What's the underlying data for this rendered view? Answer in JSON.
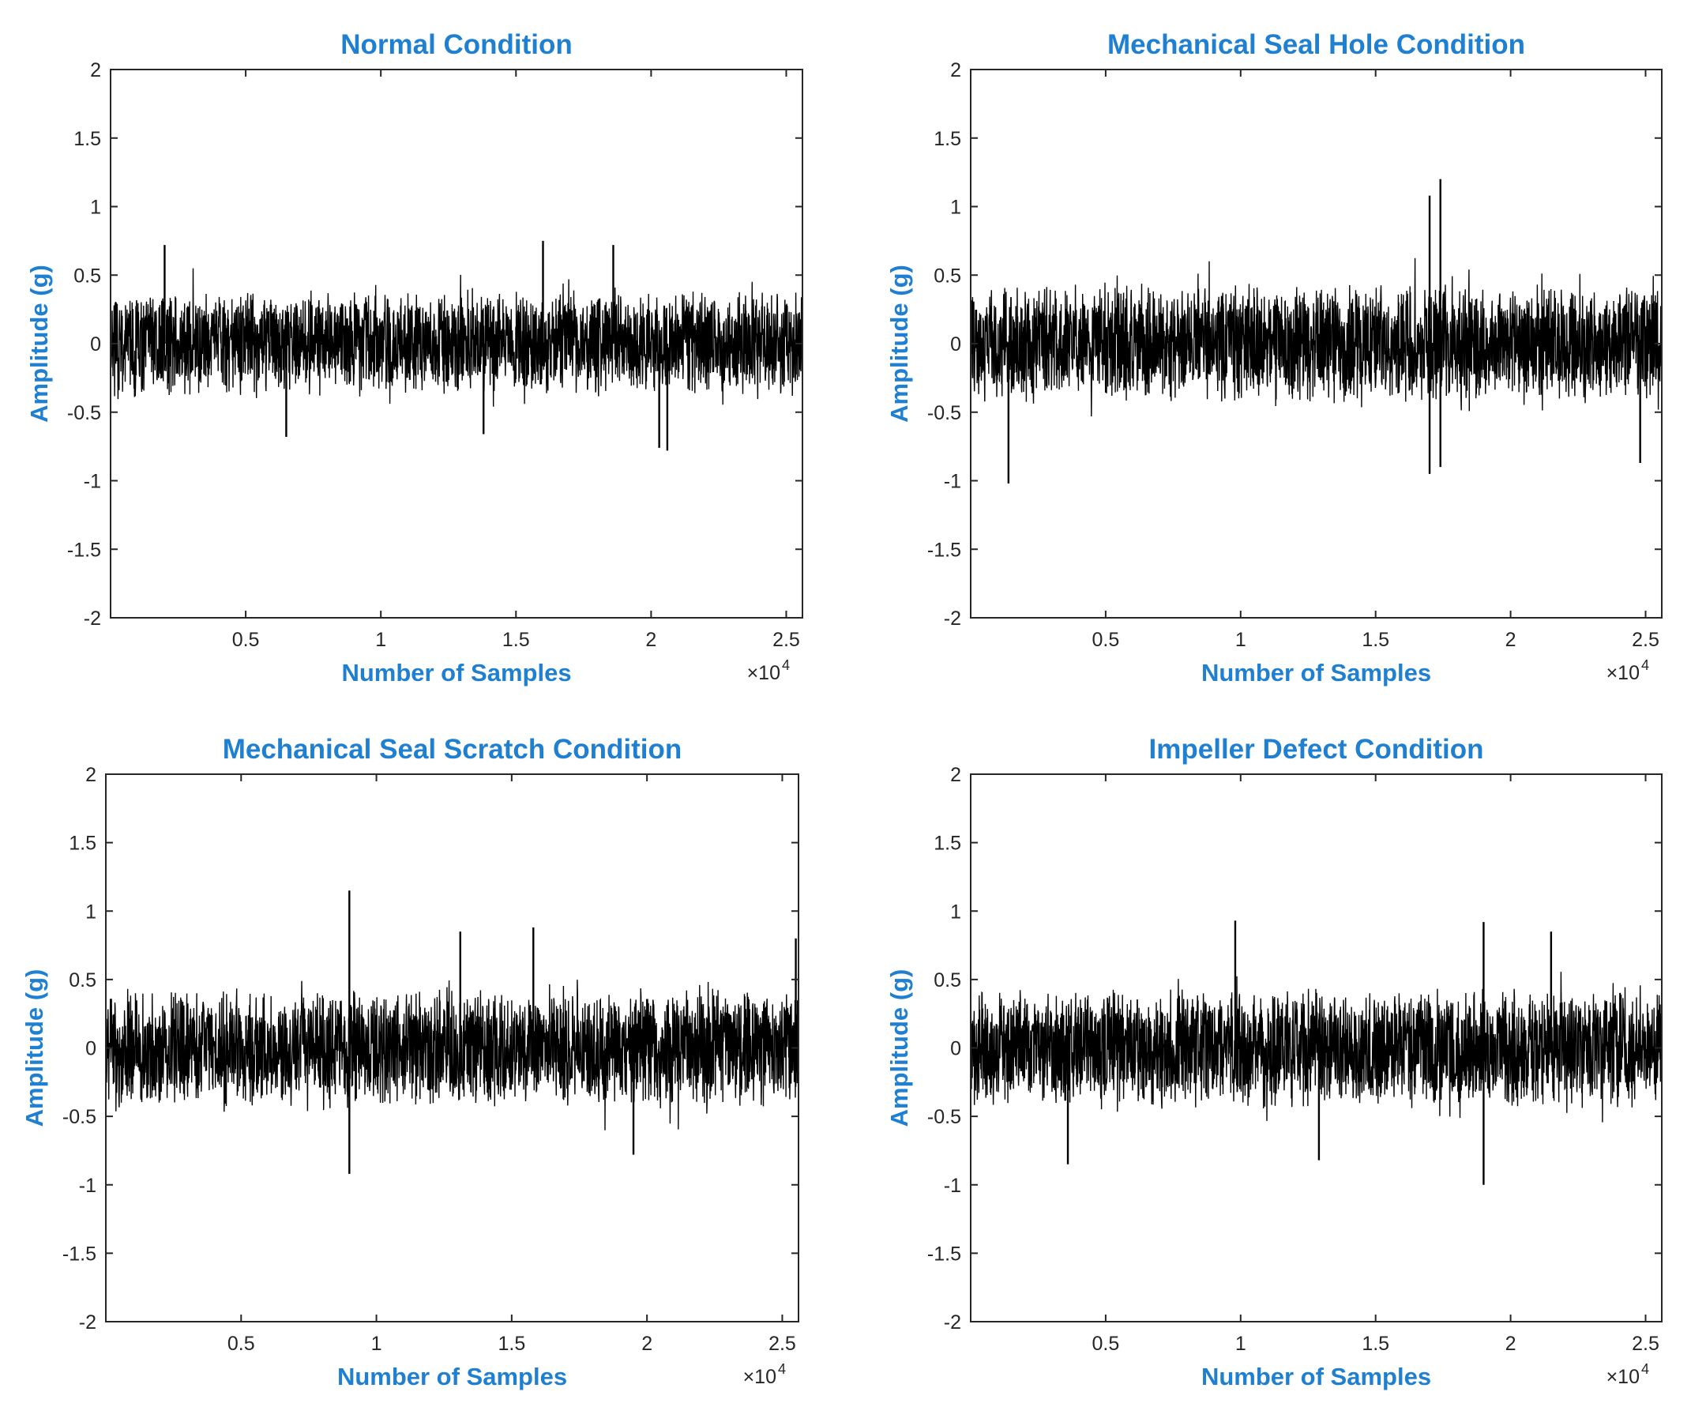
{
  "figure": {
    "label_color": "#1f7fd1",
    "signal_color": "#000000"
  },
  "chart_data": [
    {
      "type": "line",
      "title": "Normal Condition",
      "xlabel": "Number of Samples",
      "ylabel": "Amplitude (g)",
      "x_exponent_label": "×10",
      "x_exponent": "4",
      "xlim": [
        0,
        25600
      ],
      "ylim": [
        -2,
        2
      ],
      "xticks": [
        5000,
        10000,
        15000,
        20000,
        25000
      ],
      "xtick_labels": [
        "0.5",
        "1",
        "1.5",
        "2",
        "2.5"
      ],
      "yticks": [
        -2,
        -1.5,
        -1,
        -0.5,
        0,
        0.5,
        1,
        1.5,
        2
      ],
      "ytick_labels": [
        "-2",
        "-1.5",
        "-1",
        "-0.5",
        "0",
        "0.5",
        "1",
        "1.5",
        "2"
      ],
      "series": [
        {
          "kind": "vibration",
          "samples": 25600,
          "typical_range": [
            -0.4,
            0.4
          ],
          "min": -0.78,
          "max": 0.75
        }
      ],
      "spikes": [
        {
          "x": 2000,
          "y": 0.72
        },
        {
          "x": 6500,
          "y": -0.68
        },
        {
          "x": 13800,
          "y": -0.66
        },
        {
          "x": 16000,
          "y": 0.75
        },
        {
          "x": 18600,
          "y": 0.72
        },
        {
          "x": 20300,
          "y": -0.76
        },
        {
          "x": 20600,
          "y": -0.78
        }
      ],
      "grid": false
    },
    {
      "type": "line",
      "title": "Mechanical Seal Hole Condition",
      "xlabel": "Number of Samples",
      "ylabel": "Amplitude (g)",
      "x_exponent_label": "×10",
      "x_exponent": "4",
      "xlim": [
        0,
        25600
      ],
      "ylim": [
        -2,
        2
      ],
      "xticks": [
        5000,
        10000,
        15000,
        20000,
        25000
      ],
      "xtick_labels": [
        "0.5",
        "1",
        "1.5",
        "2",
        "2.5"
      ],
      "yticks": [
        -2,
        -1.5,
        -1,
        -0.5,
        0,
        0.5,
        1,
        1.5,
        2
      ],
      "ytick_labels": [
        "-2",
        "-1.5",
        "-1",
        "-0.5",
        "0",
        "0.5",
        "1",
        "1.5",
        "2"
      ],
      "series": [
        {
          "kind": "vibration",
          "samples": 25600,
          "typical_range": [
            -0.45,
            0.45
          ],
          "min": -1.02,
          "max": 1.2
        }
      ],
      "spikes": [
        {
          "x": 1400,
          "y": -1.02
        },
        {
          "x": 17000,
          "y": 1.08
        },
        {
          "x": 17000,
          "y": -0.95
        },
        {
          "x": 17400,
          "y": 1.2
        },
        {
          "x": 17400,
          "y": -0.9
        },
        {
          "x": 24800,
          "y": -0.87
        }
      ],
      "grid": false
    },
    {
      "type": "line",
      "title": "Mechanical Seal Scratch Condition",
      "xlabel": "Number of Samples",
      "ylabel": "Amplitude (g)",
      "x_exponent_label": "×10",
      "x_exponent": "4",
      "xlim": [
        0,
        25600
      ],
      "ylim": [
        -2,
        2
      ],
      "xticks": [
        5000,
        10000,
        15000,
        20000,
        25000
      ],
      "xtick_labels": [
        "0.5",
        "1",
        "1.5",
        "2",
        "2.5"
      ],
      "yticks": [
        -2,
        -1.5,
        -1,
        -0.5,
        0,
        0.5,
        1,
        1.5,
        2
      ],
      "ytick_labels": [
        "-2",
        "-1.5",
        "-1",
        "-0.5",
        "0",
        "0.5",
        "1",
        "1.5",
        "2"
      ],
      "series": [
        {
          "kind": "vibration",
          "samples": 25600,
          "typical_range": [
            -0.45,
            0.45
          ],
          "min": -0.92,
          "max": 1.15
        }
      ],
      "spikes": [
        {
          "x": 9000,
          "y": 1.15
        },
        {
          "x": 9000,
          "y": -0.92
        },
        {
          "x": 13100,
          "y": 0.85
        },
        {
          "x": 15800,
          "y": 0.88
        },
        {
          "x": 19500,
          "y": -0.78
        },
        {
          "x": 25500,
          "y": 0.8
        }
      ],
      "grid": false
    },
    {
      "type": "line",
      "title": "Impeller Defect Condition",
      "xlabel": "Number of Samples",
      "ylabel": "Amplitude (g)",
      "x_exponent_label": "×10",
      "x_exponent": "4",
      "xlim": [
        0,
        25600
      ],
      "ylim": [
        -2,
        2
      ],
      "xticks": [
        5000,
        10000,
        15000,
        20000,
        25000
      ],
      "xtick_labels": [
        "0.5",
        "1",
        "1.5",
        "2",
        "2.5"
      ],
      "yticks": [
        -2,
        -1.5,
        -1,
        -0.5,
        0,
        0.5,
        1,
        1.5,
        2
      ],
      "ytick_labels": [
        "-2",
        "-1.5",
        "-1",
        "-0.5",
        "0",
        "0.5",
        "1",
        "1.5",
        "2"
      ],
      "series": [
        {
          "kind": "vibration",
          "samples": 25600,
          "typical_range": [
            -0.45,
            0.45
          ],
          "min": -1.0,
          "max": 0.93
        }
      ],
      "spikes": [
        {
          "x": 3600,
          "y": -0.85
        },
        {
          "x": 9800,
          "y": 0.93
        },
        {
          "x": 12900,
          "y": -0.82
        },
        {
          "x": 19000,
          "y": 0.92
        },
        {
          "x": 19000,
          "y": -1.0
        },
        {
          "x": 21500,
          "y": 0.85
        }
      ],
      "grid": false
    }
  ]
}
